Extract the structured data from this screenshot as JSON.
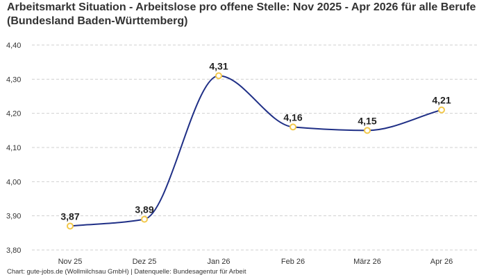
{
  "title": "Arbeitsmarkt Situation - Arbeitslose pro offene Stelle: Nov 2025 - Apr 2026 für alle Berufe (Bundesland Baden-Württemberg)",
  "footer": "Chart: gute-jobs.de (Wollmilchsau GmbH) | Datenquelle: Bundesagentur für Arbeit",
  "chart_data": {
    "type": "line",
    "title": "Arbeitsmarkt Situation - Arbeitslose pro offene Stelle: Nov 2025 - Apr 2026 für alle Berufe (Bundesland Baden-Württemberg)",
    "categories": [
      "Nov 25",
      "Dez 25",
      "Jan 26",
      "Feb 26",
      "März 26",
      "Apr 26"
    ],
    "series": [
      {
        "values": [
          3.87,
          3.89,
          4.31,
          4.16,
          4.15,
          4.21
        ]
      }
    ],
    "data_labels": [
      "3,87",
      "3,89",
      "4,31",
      "4,16",
      "4,15",
      "4,21"
    ],
    "y_ticks": [
      3.8,
      3.9,
      4.0,
      4.1,
      4.2,
      4.3,
      4.4
    ],
    "y_tick_labels": [
      "3,80",
      "3,90",
      "4,00",
      "4,10",
      "4,20",
      "4,30",
      "4,40"
    ],
    "ylim": [
      3.8,
      4.4
    ],
    "xlabel": "",
    "ylabel": "",
    "grid": true,
    "colors": {
      "line": "#1f2f86",
      "marker_stroke": "#f2c84b",
      "marker_fill": "#ffffff",
      "grid": "#cfcfcf"
    }
  }
}
